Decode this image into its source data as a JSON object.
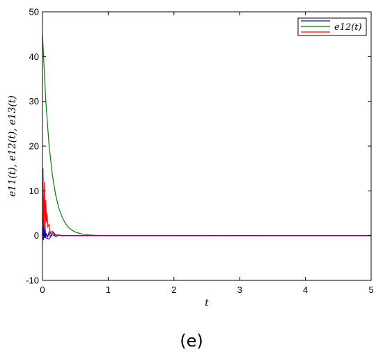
{
  "chart_data": {
    "type": "line",
    "title": "",
    "xlabel": "t",
    "ylabel": "e11(t), e12(t), e13(t)",
    "xlim": [
      0,
      5
    ],
    "ylim": [
      -10,
      50
    ],
    "xticks": [
      0,
      1,
      2,
      3,
      4,
      5
    ],
    "yticks": [
      -10,
      0,
      10,
      20,
      30,
      40,
      50
    ],
    "grid": false,
    "legend_position": "top-right",
    "legend_entries": [
      "e12(t)"
    ],
    "series": [
      {
        "color": "#0000ff",
        "x": [
          0,
          0.005,
          0.01,
          0.015,
          0.02,
          0.025,
          0.03,
          0.04,
          0.05,
          0.06,
          0.08,
          0.1,
          0.12,
          0.15,
          0.2,
          0.25,
          0.3,
          0.4,
          0.6,
          1.0,
          5.0
        ],
        "y": [
          0,
          10,
          0,
          -1,
          5,
          0,
          -0.5,
          2,
          -0.5,
          0.5,
          -0.3,
          0.8,
          -0.3,
          0.2,
          -0.1,
          0.1,
          0,
          0,
          0,
          0,
          0
        ]
      },
      {
        "color": "#008000",
        "x": [
          0,
          0.05,
          0.1,
          0.15,
          0.2,
          0.25,
          0.3,
          0.35,
          0.4,
          0.45,
          0.5,
          0.55,
          0.6,
          0.7,
          0.8,
          0.9,
          5.0
        ],
        "y": [
          45,
          30.2,
          20.2,
          13.6,
          9.1,
          6.1,
          4.1,
          2.7,
          1.8,
          1.2,
          0.8,
          0.55,
          0.37,
          0.17,
          0.07,
          0.03,
          0
        ]
      },
      {
        "color": "#ff0000",
        "x": [
          0,
          0.008,
          0.015,
          0.02,
          0.03,
          0.04,
          0.05,
          0.06,
          0.07,
          0.08,
          0.1,
          0.12,
          0.15,
          0.2,
          0.3,
          0.5,
          5.0
        ],
        "y": [
          0,
          15,
          6,
          2,
          12,
          1,
          8,
          3,
          5,
          2,
          2.5,
          0.5,
          1,
          0.2,
          0.05,
          0,
          0
        ]
      },
      {
        "color": "#800080",
        "x": [
          0,
          0.05,
          0.1,
          0.12,
          0.14,
          0.16,
          0.18,
          0.2,
          0.22,
          0.25,
          0.3,
          0.35,
          0.45,
          5.0
        ],
        "y": [
          0,
          -0.5,
          -0.8,
          -0.4,
          0.4,
          0.7,
          0.3,
          -0.2,
          -0.1,
          0.15,
          -0.05,
          0.02,
          0,
          0
        ]
      }
    ]
  },
  "panel_label": "(e)"
}
